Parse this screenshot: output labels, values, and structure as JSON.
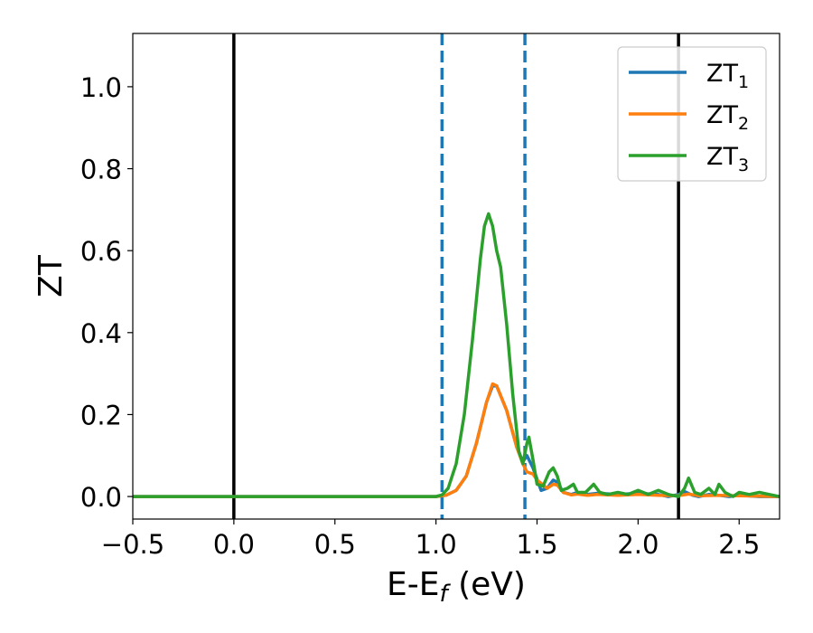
{
  "chart_data": {
    "type": "line",
    "xlabel_main": "E-E",
    "xlabel_sub": "f",
    "xlabel_unit": "(eV)",
    "ylabel": "ZT",
    "xlim": [
      -0.5,
      2.7
    ],
    "ylim": [
      -0.055,
      1.13
    ],
    "xticks": [
      -0.5,
      0.0,
      0.5,
      1.0,
      1.5,
      2.0,
      2.5
    ],
    "xtick_labels": [
      "−0.5",
      "0.0",
      "0.5",
      "1.0",
      "1.5",
      "2.0",
      "2.5"
    ],
    "yticks": [
      0.0,
      0.2,
      0.4,
      0.6,
      0.8,
      1.0
    ],
    "ytick_labels": [
      "0.0",
      "0.2",
      "0.4",
      "0.6",
      "0.8",
      "1.0"
    ],
    "legend_position": "top-right",
    "vlines": [
      {
        "x": 0.0,
        "style": "solid",
        "color": "#000000"
      },
      {
        "x": 2.2,
        "style": "solid",
        "color": "#000000"
      },
      {
        "x": 1.03,
        "style": "dashed",
        "color": "#1f77b4"
      },
      {
        "x": 1.44,
        "style": "dashed",
        "color": "#1f77b4"
      }
    ],
    "series": [
      {
        "name": "ZT",
        "sub": "1",
        "color": "#1f77b4",
        "x": [
          -0.5,
          0.9,
          1.0,
          1.05,
          1.1,
          1.15,
          1.2,
          1.25,
          1.28,
          1.3,
          1.35,
          1.4,
          1.43,
          1.45,
          1.48,
          1.52,
          1.55,
          1.58,
          1.6,
          1.63,
          1.67,
          1.7,
          1.75,
          1.8,
          1.9,
          2.0,
          2.1,
          2.15,
          2.2,
          2.23,
          2.27,
          2.3,
          2.35,
          2.4,
          2.45,
          2.5,
          2.6,
          2.7
        ],
        "y": [
          0.0,
          0.0,
          0.0,
          0.003,
          0.015,
          0.05,
          0.13,
          0.23,
          0.27,
          0.27,
          0.21,
          0.12,
          0.085,
          0.1,
          0.07,
          0.015,
          0.02,
          0.04,
          0.035,
          0.01,
          0.005,
          0.01,
          0.005,
          0.008,
          0.005,
          0.008,
          0.005,
          0.0,
          0.005,
          0.012,
          0.003,
          0.0,
          0.005,
          0.003,
          0.0,
          0.003,
          0.0,
          0.0
        ]
      },
      {
        "name": "ZT",
        "sub": "2",
        "color": "#ff7f0e",
        "x": [
          -0.5,
          0.9,
          1.0,
          1.05,
          1.1,
          1.15,
          1.2,
          1.25,
          1.28,
          1.3,
          1.35,
          1.4,
          1.43,
          1.45,
          1.48,
          1.5,
          1.55,
          1.58,
          1.6,
          1.63,
          1.67,
          1.7,
          1.75,
          1.8,
          1.9,
          2.0,
          2.1,
          2.2,
          2.25,
          2.3,
          2.4,
          2.5,
          2.6,
          2.7
        ],
        "y": [
          0.0,
          0.0,
          0.0,
          0.003,
          0.015,
          0.05,
          0.13,
          0.23,
          0.275,
          0.27,
          0.21,
          0.12,
          0.08,
          0.06,
          0.055,
          0.04,
          0.02,
          0.03,
          0.028,
          0.01,
          0.004,
          0.006,
          0.003,
          0.005,
          0.003,
          0.005,
          0.003,
          0.002,
          0.006,
          0.002,
          0.003,
          0.002,
          0.001,
          0.0
        ]
      },
      {
        "name": "ZT",
        "sub": "3",
        "color": "#2ca02c",
        "x": [
          -0.5,
          0.9,
          1.0,
          1.03,
          1.06,
          1.1,
          1.14,
          1.18,
          1.22,
          1.24,
          1.26,
          1.28,
          1.3,
          1.32,
          1.35,
          1.38,
          1.41,
          1.43,
          1.45,
          1.46,
          1.48,
          1.5,
          1.53,
          1.56,
          1.58,
          1.6,
          1.62,
          1.65,
          1.68,
          1.7,
          1.74,
          1.78,
          1.81,
          1.85,
          1.9,
          1.95,
          2.0,
          2.05,
          2.1,
          2.15,
          2.2,
          2.23,
          2.25,
          2.28,
          2.31,
          2.35,
          2.38,
          2.4,
          2.43,
          2.47,
          2.5,
          2.55,
          2.6,
          2.65,
          2.7
        ],
        "y": [
          0.0,
          0.0,
          0.0,
          0.004,
          0.02,
          0.08,
          0.2,
          0.38,
          0.58,
          0.66,
          0.69,
          0.66,
          0.6,
          0.56,
          0.42,
          0.25,
          0.11,
          0.08,
          0.13,
          0.145,
          0.09,
          0.03,
          0.025,
          0.06,
          0.07,
          0.05,
          0.015,
          0.02,
          0.03,
          0.01,
          0.01,
          0.03,
          0.01,
          0.005,
          0.01,
          0.005,
          0.015,
          0.005,
          0.015,
          0.005,
          0.0,
          0.02,
          0.045,
          0.01,
          0.005,
          0.02,
          0.005,
          0.03,
          0.01,
          0.0,
          0.01,
          0.005,
          0.01,
          0.005,
          0.0
        ]
      }
    ]
  }
}
